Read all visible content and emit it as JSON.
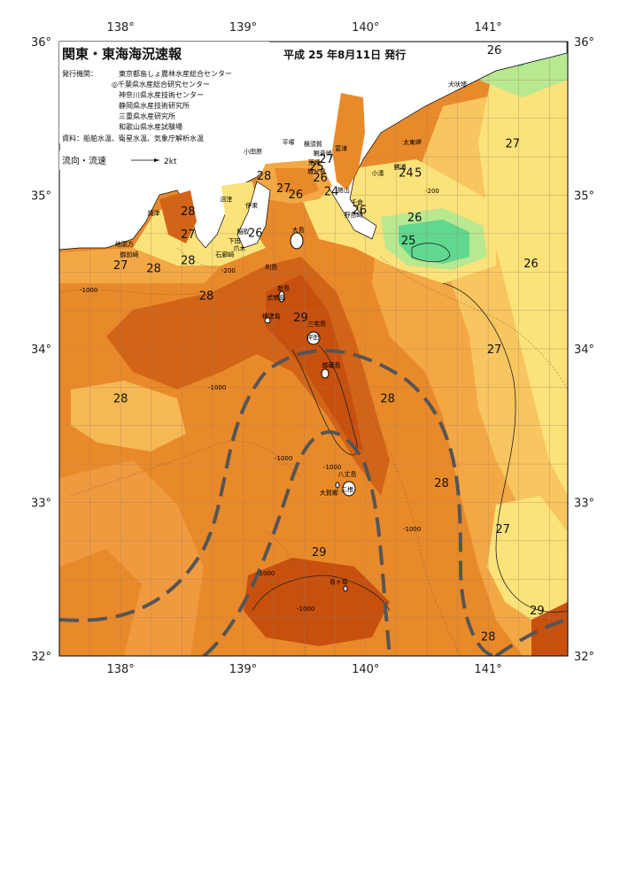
{
  "header": {
    "title": "関東・東海海況速報",
    "date": "平成 25 年8月11日 発行",
    "institutions_label": "発行機関：",
    "institutions": [
      "東京都島しょ農林水産総合センター",
      "◎千葉県水産総合研究センター",
      "神奈川県水産技術センター",
      "静岡県水産技術研究所",
      "三重県水産研究所",
      "和歌山県水産試験場"
    ],
    "sources": "資料：船舶水温、衛星水温、気象庁解析水温",
    "current_legend": "流向・流速",
    "current_scale": "2kt"
  },
  "axes": {
    "lon_labels": [
      "138°",
      "139°",
      "140°",
      "141°"
    ],
    "lat_labels": [
      "36°",
      "35°",
      "34°",
      "33°",
      "32°"
    ]
  },
  "colors": {
    "deep_orange": "#c8500f",
    "orange": "#e07820",
    "light_orange": "#f0a040",
    "yellow_orange": "#f8c860",
    "yellow": "#fbe97a",
    "light_green": "#b8e890",
    "green": "#60d890",
    "land": "#ffffff",
    "current": "#555555"
  },
  "temperatures": [
    {
      "v": "26",
      "lon": 141.05,
      "lat": 35.92
    },
    {
      "v": "27",
      "lon": 141.2,
      "lat": 35.31
    },
    {
      "v": "26",
      "lon": 140.4,
      "lat": 34.83
    },
    {
      "v": "25",
      "lon": 140.35,
      "lat": 34.68
    },
    {
      "v": "26",
      "lon": 141.35,
      "lat": 34.53
    },
    {
      "v": "28",
      "lon": 138.55,
      "lat": 34.87
    },
    {
      "v": "27",
      "lon": 138.55,
      "lat": 34.72
    },
    {
      "v": "28",
      "lon": 138.55,
      "lat": 34.55
    },
    {
      "v": "27",
      "lon": 138.0,
      "lat": 34.52
    },
    {
      "v": "28",
      "lon": 138.27,
      "lat": 34.5
    },
    {
      "v": "28",
      "lon": 138.7,
      "lat": 34.32
    },
    {
      "v": "26",
      "lon": 139.1,
      "lat": 34.73
    },
    {
      "v": "28",
      "lon": 139.17,
      "lat": 35.1
    },
    {
      "v": "27",
      "lon": 139.33,
      "lat": 35.02
    },
    {
      "v": "26",
      "lon": 139.43,
      "lat": 34.98
    },
    {
      "v": "25",
      "lon": 139.6,
      "lat": 35.16
    },
    {
      "v": "27",
      "lon": 139.68,
      "lat": 35.21
    },
    {
      "v": "26",
      "lon": 139.63,
      "lat": 35.09
    },
    {
      "v": "24",
      "lon": 139.72,
      "lat": 35.0
    },
    {
      "v": "26",
      "lon": 139.95,
      "lat": 34.88
    },
    {
      "v": "24",
      "lon": 140.33,
      "lat": 35.12
    },
    {
      "v": "5",
      "lon": 140.43,
      "lat": 35.12
    },
    {
      "v": "29",
      "lon": 139.47,
      "lat": 34.18
    },
    {
      "v": "27",
      "lon": 141.05,
      "lat": 33.97
    },
    {
      "v": "28",
      "lon": 138.0,
      "lat": 33.65
    },
    {
      "v": "28",
      "lon": 140.18,
      "lat": 33.65
    },
    {
      "v": "28",
      "lon": 140.62,
      "lat": 33.1
    },
    {
      "v": "27",
      "lon": 141.12,
      "lat": 32.8
    },
    {
      "v": "29",
      "lon": 139.62,
      "lat": 32.65
    },
    {
      "v": "28",
      "lon": 141.0,
      "lat": 32.1
    },
    {
      "v": "29",
      "lon": 141.4,
      "lat": 32.27
    }
  ],
  "places": [
    {
      "n": "犬吠埼",
      "lon": 140.75,
      "lat": 35.71
    },
    {
      "n": "太東岬",
      "lon": 140.38,
      "lat": 35.33
    },
    {
      "n": "勝浦",
      "lon": 140.28,
      "lat": 35.17
    },
    {
      "n": "小湊",
      "lon": 140.1,
      "lat": 35.13
    },
    {
      "n": "平塚",
      "lon": 139.37,
      "lat": 35.33
    },
    {
      "n": "横須賀",
      "lon": 139.57,
      "lat": 35.32
    },
    {
      "n": "富津",
      "lon": 139.8,
      "lat": 35.29
    },
    {
      "n": "観音崎",
      "lon": 139.65,
      "lat": 35.26
    },
    {
      "n": "小田原",
      "lon": 139.08,
      "lat": 35.27
    },
    {
      "n": "荒崎",
      "lon": 139.58,
      "lat": 35.2
    },
    {
      "n": "城ヶ島",
      "lon": 139.6,
      "lat": 35.14
    },
    {
      "n": "館山",
      "lon": 139.82,
      "lat": 35.02
    },
    {
      "n": "千倉",
      "lon": 139.93,
      "lat": 34.94
    },
    {
      "n": "野島崎",
      "lon": 139.9,
      "lat": 34.86
    },
    {
      "n": "沼津",
      "lon": 138.86,
      "lat": 34.96
    },
    {
      "n": "伊東",
      "lon": 139.07,
      "lat": 34.92
    },
    {
      "n": "大島",
      "lon": 139.45,
      "lat": 34.76
    },
    {
      "n": "焼津",
      "lon": 138.27,
      "lat": 34.87
    },
    {
      "n": "稲取",
      "lon": 139.0,
      "lat": 34.75
    },
    {
      "n": "下田",
      "lon": 138.93,
      "lat": 34.69
    },
    {
      "n": "爪木",
      "lon": 138.97,
      "lat": 34.64
    },
    {
      "n": "石廊崎",
      "lon": 138.85,
      "lat": 34.6
    },
    {
      "n": "御前崎",
      "lon": 138.07,
      "lat": 34.6
    },
    {
      "n": "地頭方",
      "lon": 138.03,
      "lat": 34.67
    },
    {
      "n": "利島",
      "lon": 139.23,
      "lat": 34.52
    },
    {
      "n": "新島",
      "lon": 139.33,
      "lat": 34.38
    },
    {
      "n": "式根島",
      "lon": 139.27,
      "lat": 34.32
    },
    {
      "n": "神津島",
      "lon": 139.23,
      "lat": 34.2
    },
    {
      "n": "三宅島",
      "lon": 139.6,
      "lat": 34.15
    },
    {
      "n": "坪田",
      "lon": 139.57,
      "lat": 34.06
    },
    {
      "n": "御蔵島",
      "lon": 139.72,
      "lat": 33.88
    },
    {
      "n": "八丈島",
      "lon": 139.85,
      "lat": 33.17
    },
    {
      "n": "三根",
      "lon": 139.85,
      "lat": 33.07
    },
    {
      "n": "大賀郷",
      "lon": 139.7,
      "lat": 33.05
    },
    {
      "n": "青ヶ島",
      "lon": 139.78,
      "lat": 32.47
    }
  ],
  "contour_labels": [
    "-200",
    "-1000"
  ]
}
